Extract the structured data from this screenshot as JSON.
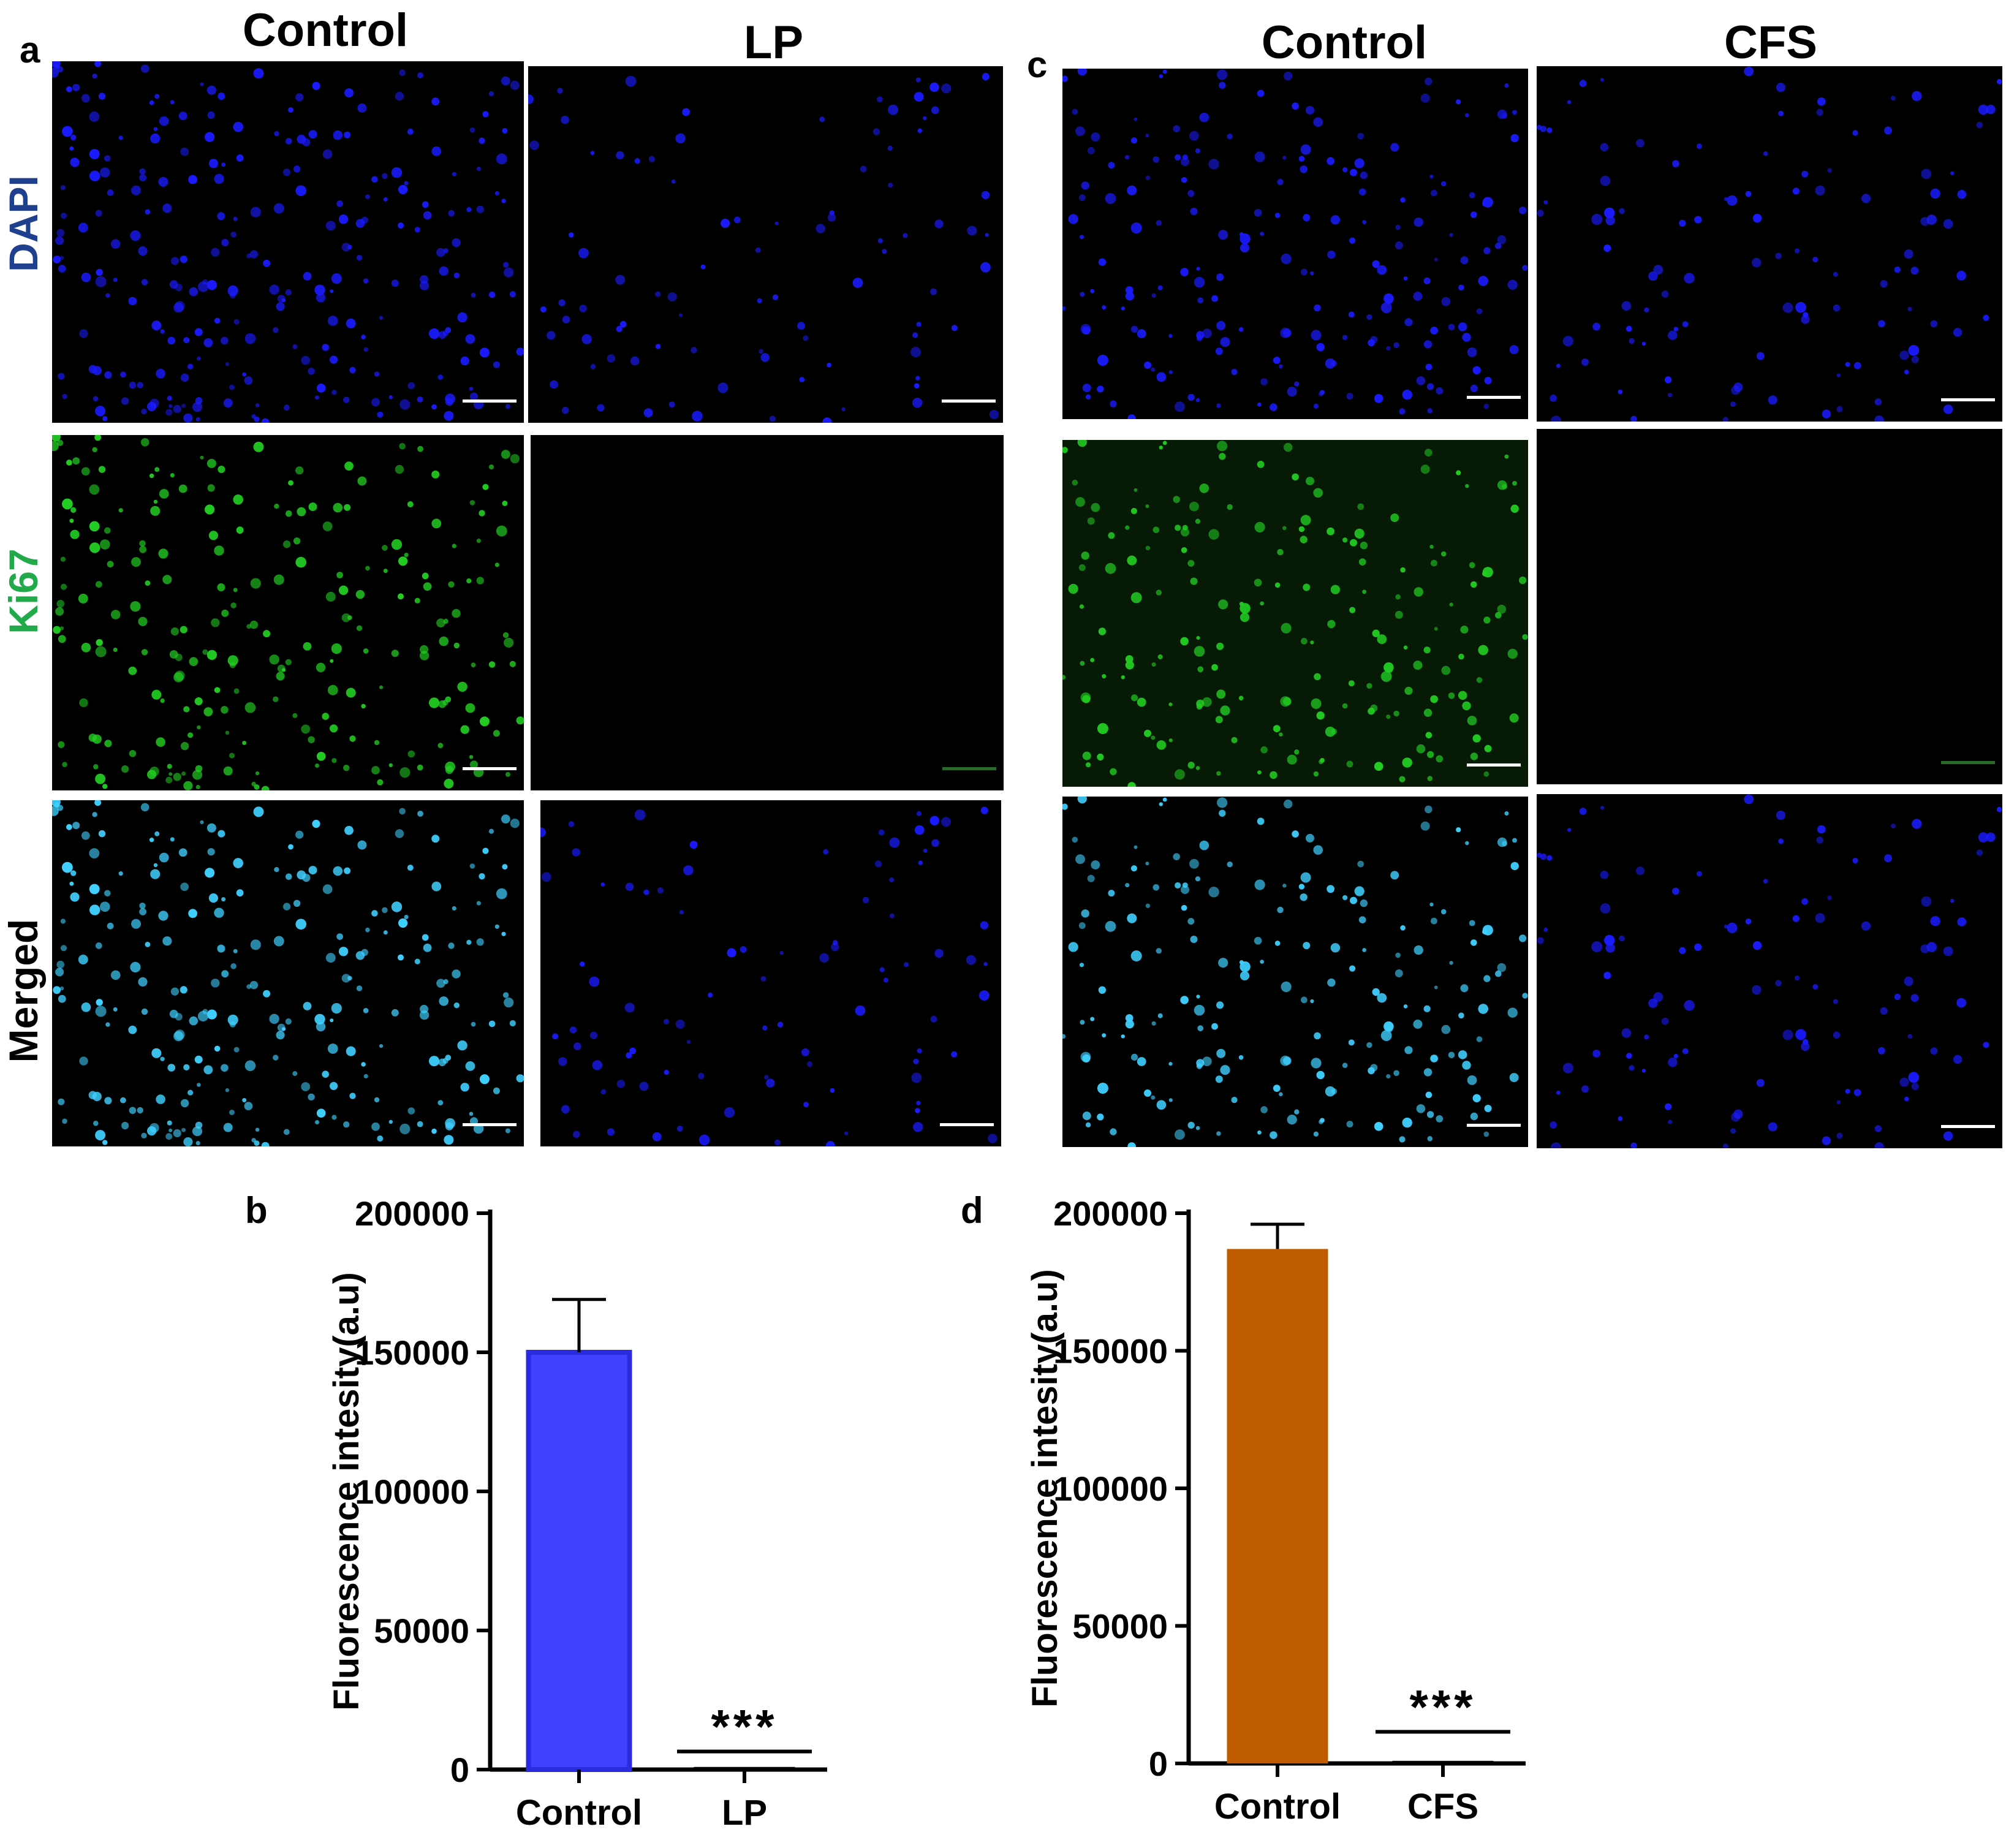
{
  "figure": {
    "left_group": {
      "panel_letter": "a",
      "columns": [
        "Control",
        "LP"
      ]
    },
    "right_group": {
      "panel_letter": "c",
      "columns": [
        "Control",
        "CFS"
      ]
    },
    "rows": [
      {
        "label": "DAPI",
        "color": "#1f3f8f"
      },
      {
        "label": "Ki67",
        "color": "#22aa4a"
      },
      {
        "label": "Merged",
        "color": "#000000"
      }
    ],
    "stain_colors": {
      "dapi": "#1a1aff",
      "ki67": "#22cc22",
      "merged": "#3fd0ff",
      "background": "#000000"
    }
  },
  "chart_data": [
    {
      "panel_letter": "b",
      "type": "bar",
      "categories": [
        "Control",
        "LP"
      ],
      "values": [
        150000,
        500
      ],
      "error": [
        19000,
        0
      ],
      "ylabel": "Fluorescence intesity(a.u)",
      "ylim": [
        0,
        200000
      ],
      "yticks": [
        "0",
        "50000",
        "100000",
        "150000",
        "200000"
      ],
      "bar_colors": [
        "#4040ff",
        "#ffffff"
      ],
      "significance": "***",
      "significance_line_value": 6500
    },
    {
      "panel_letter": "d",
      "type": "bar",
      "categories": [
        "Control",
        "CFS"
      ],
      "values": [
        187000,
        500
      ],
      "error": [
        9000,
        0
      ],
      "ylabel": "Fluorescence intesity(a.u)",
      "ylim": [
        0,
        200000
      ],
      "yticks": [
        "0",
        "50000",
        "100000",
        "150000",
        "200000"
      ],
      "bar_colors": [
        "#c05c00",
        "#ffffff"
      ],
      "significance": "***",
      "significance_line_value": 11500
    }
  ]
}
